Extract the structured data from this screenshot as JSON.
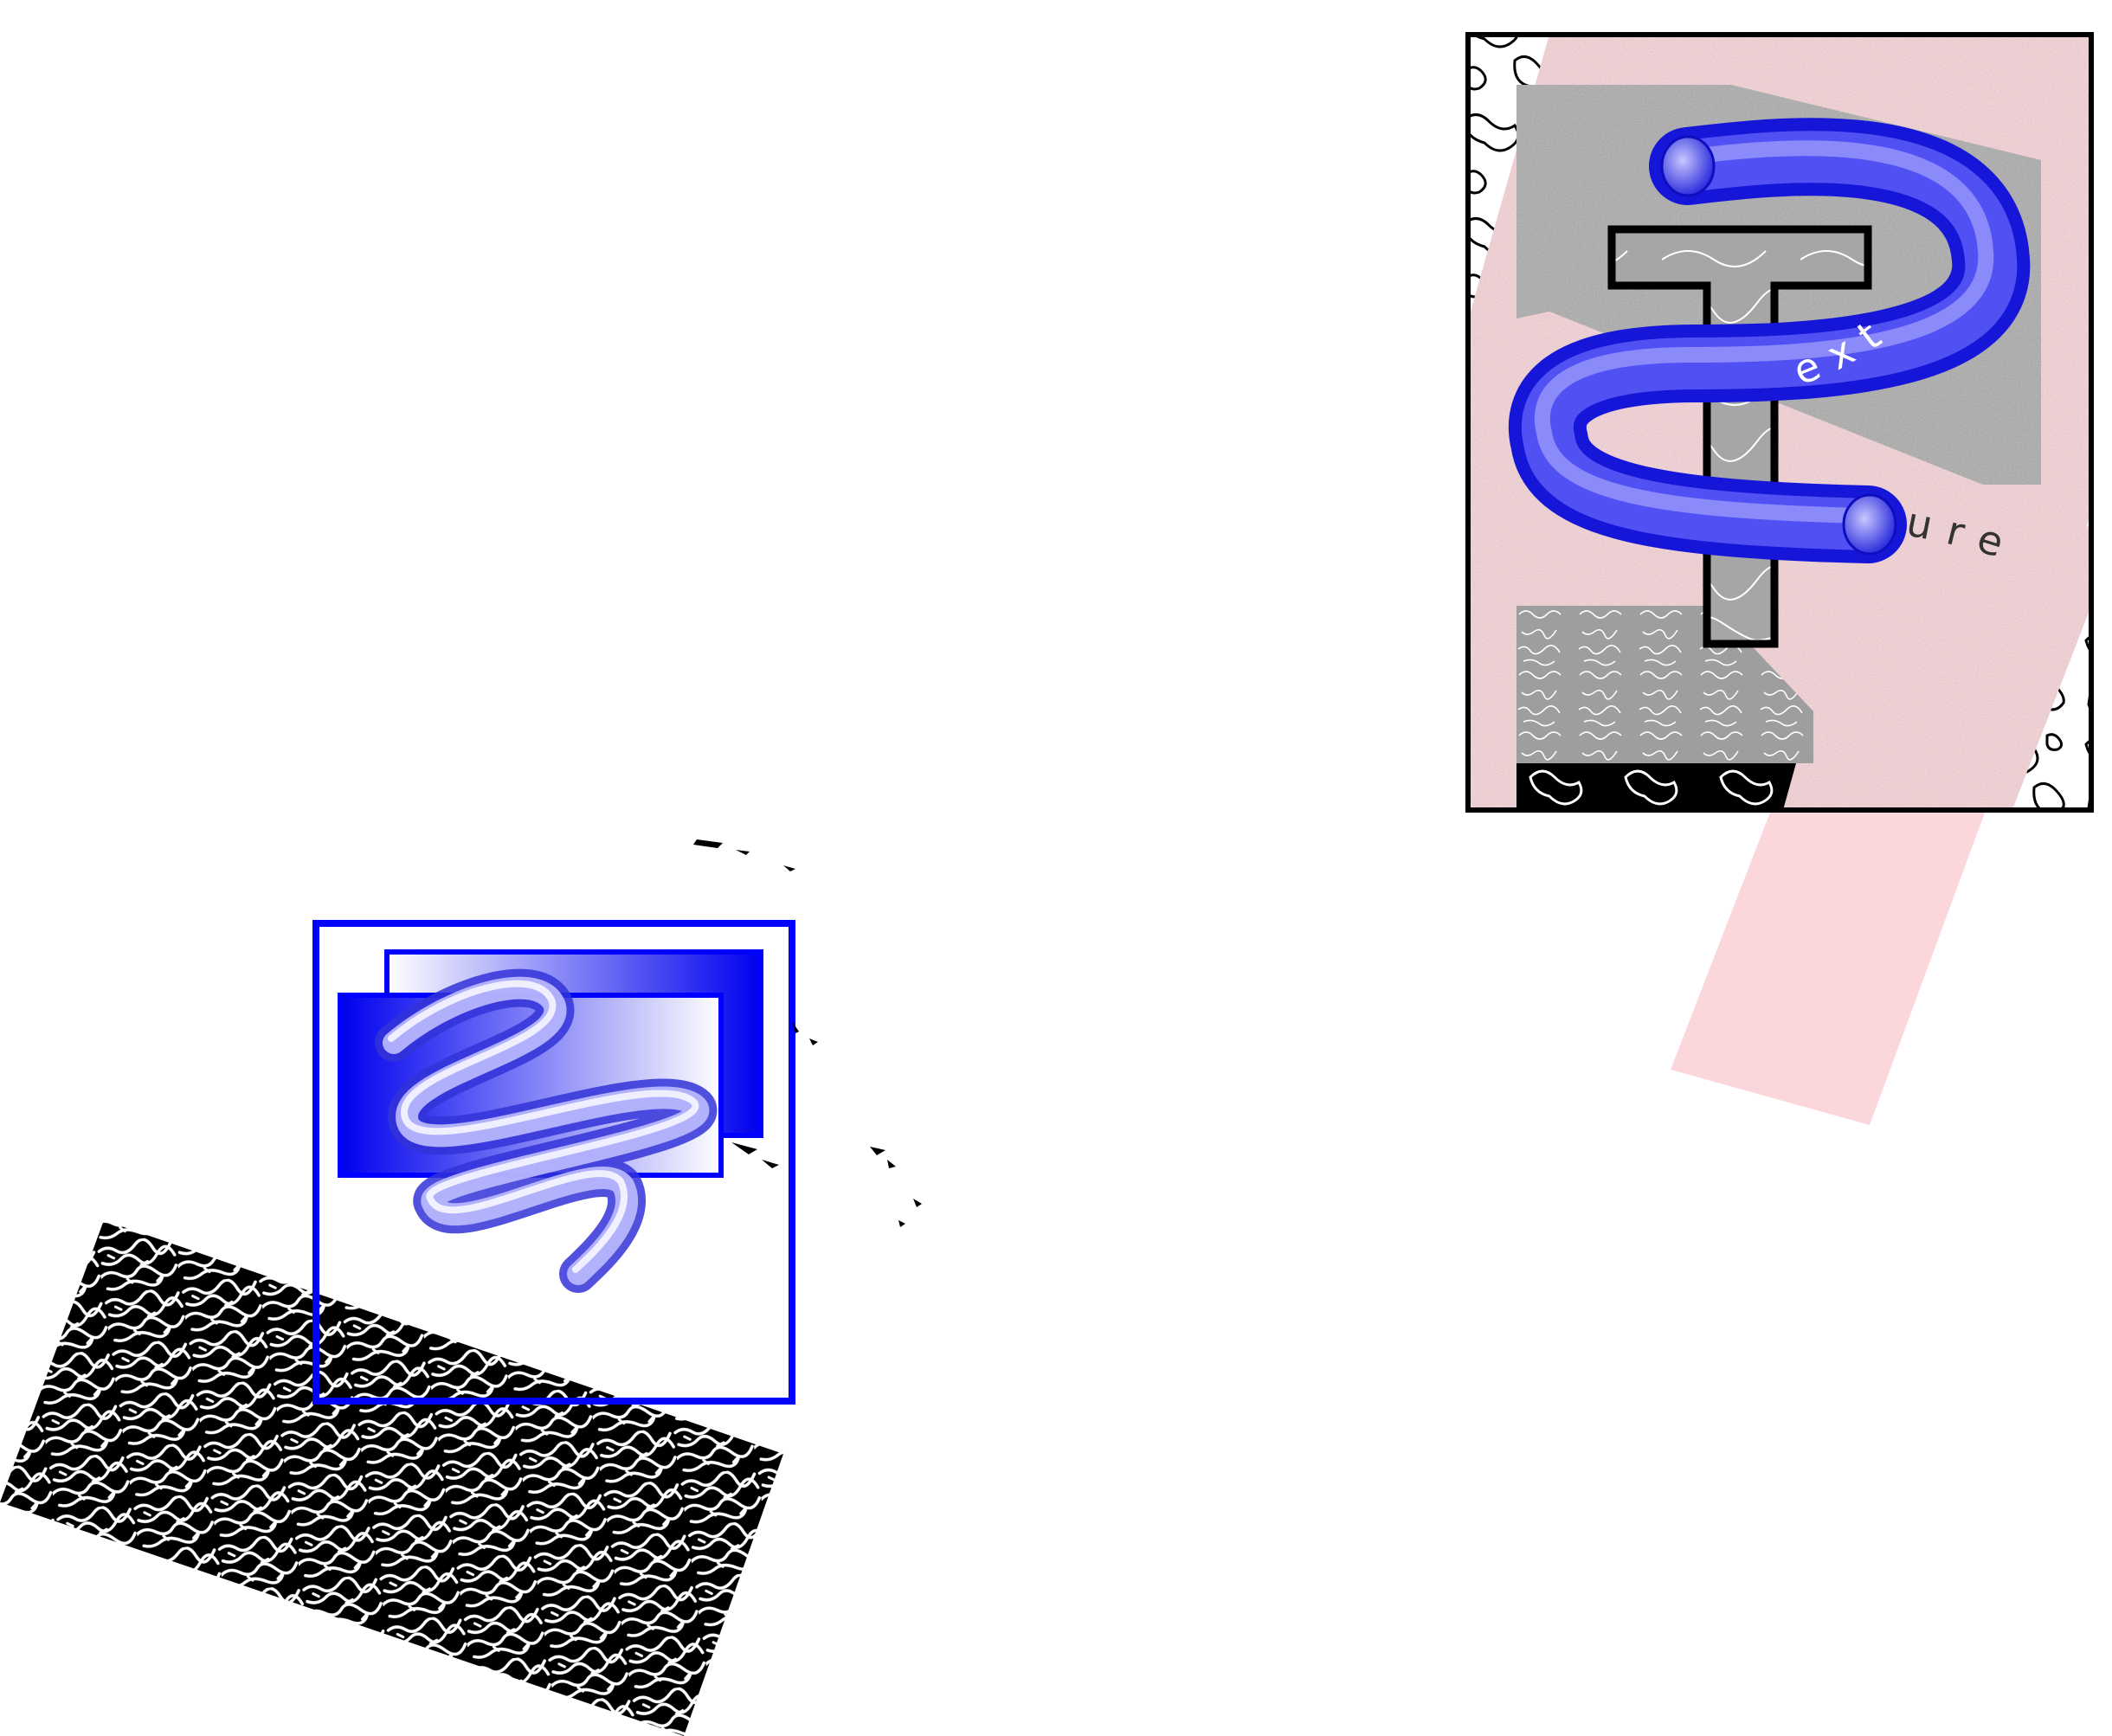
{
  "poster": {
    "letter_t": "T",
    "word_top": "ext",
    "word_bottom": "ure"
  },
  "colors": {
    "background": "#ffffff",
    "blue": "#0000ff",
    "tube_blue": "#3a3af0",
    "pink": "#fbd6da",
    "gray": "#a9a9a9",
    "black": "#000000"
  }
}
